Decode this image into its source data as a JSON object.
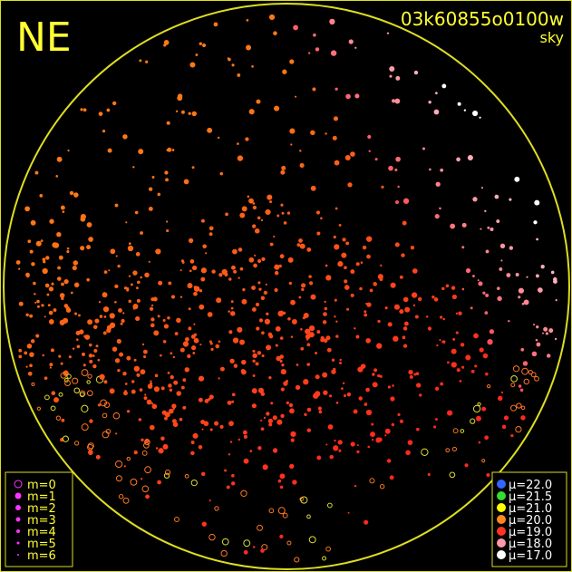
{
  "header": {
    "direction": "NE",
    "frame_id": "03k60855o0100w",
    "mode": "sky"
  },
  "magnitude_legend": {
    "color": "#ff33ff",
    "items": [
      "m=0",
      "m=1",
      "m=2",
      "m=3",
      "m=4",
      "m=5",
      "m=6"
    ]
  },
  "brightness_legend": {
    "items": [
      {
        "label": "μ=22.0",
        "color": "#3366ff"
      },
      {
        "label": "μ=21.5",
        "color": "#33dd33"
      },
      {
        "label": "μ=21.0",
        "color": "#ffff00"
      },
      {
        "label": "μ=20.0",
        "color": "#ff8822"
      },
      {
        "label": "μ=19.0",
        "color": "#ff3322"
      },
      {
        "label": "μ=18.0",
        "color": "#ff99aa"
      },
      {
        "label": "μ=17.0",
        "color": "#ffffff"
      }
    ]
  }
}
